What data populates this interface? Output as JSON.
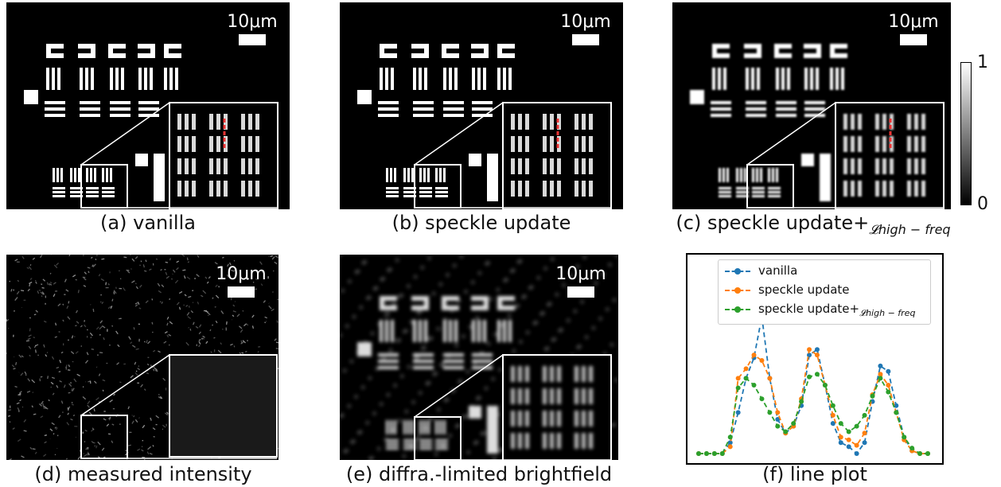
{
  "panels": [
    {
      "id": "a",
      "caption": "(a) vanilla",
      "scale": "10μm",
      "style": "sharp"
    },
    {
      "id": "b",
      "caption": "(b) speckle update",
      "scale": "10μm",
      "style": "sharp"
    },
    {
      "id": "c",
      "caption_main": "(c) speckle update+",
      "caption_sub": "𝓛high − freq",
      "scale": "10μm",
      "style": "smooth"
    },
    {
      "id": "d",
      "caption": "(d) measured intensity",
      "scale": "10μm",
      "style": "noise"
    },
    {
      "id": "e",
      "caption": "(e) diffra.-limited brightfield",
      "scale": "10μm",
      "style": "blurry"
    },
    {
      "id": "f",
      "caption": "(f) line plot"
    }
  ],
  "colorbar": {
    "max": "1",
    "min": "0"
  },
  "legend": {
    "vanilla": "vanilla",
    "speckle": "speckle update",
    "hf_main": "speckle update+",
    "hf_sub": "𝓛high − freq"
  },
  "chart_data": {
    "type": "line",
    "series": [
      {
        "name": "vanilla",
        "color": "#1f77b4",
        "values": [
          0,
          0,
          0,
          0,
          0.08,
          0.3,
          0.55,
          0.7,
          1.0,
          0.55,
          0.25,
          0.15,
          0.2,
          0.35,
          0.72,
          0.76,
          0.5,
          0.22,
          0.08,
          0.05,
          0.0,
          0.08,
          0.38,
          0.64,
          0.6,
          0.35,
          0.12,
          0.02,
          0,
          0
        ]
      },
      {
        "name": "speckle update",
        "color": "#ff7f0e",
        "values": [
          0,
          0,
          0,
          0,
          0.05,
          0.55,
          0.62,
          0.72,
          0.68,
          0.55,
          0.3,
          0.15,
          0.2,
          0.4,
          0.76,
          0.72,
          0.5,
          0.28,
          0.12,
          0.1,
          0.06,
          0.15,
          0.43,
          0.58,
          0.5,
          0.3,
          0.1,
          0.02,
          0,
          0
        ]
      },
      {
        "name": "speckle update+𝓛high − freq",
        "color": "#2ca02c",
        "values": [
          0,
          0,
          0,
          0,
          0.12,
          0.48,
          0.55,
          0.5,
          0.4,
          0.3,
          0.2,
          0.16,
          0.22,
          0.38,
          0.56,
          0.58,
          0.5,
          0.35,
          0.22,
          0.16,
          0.2,
          0.28,
          0.42,
          0.55,
          0.45,
          0.3,
          0.12,
          0.04,
          0,
          0
        ]
      }
    ]
  }
}
